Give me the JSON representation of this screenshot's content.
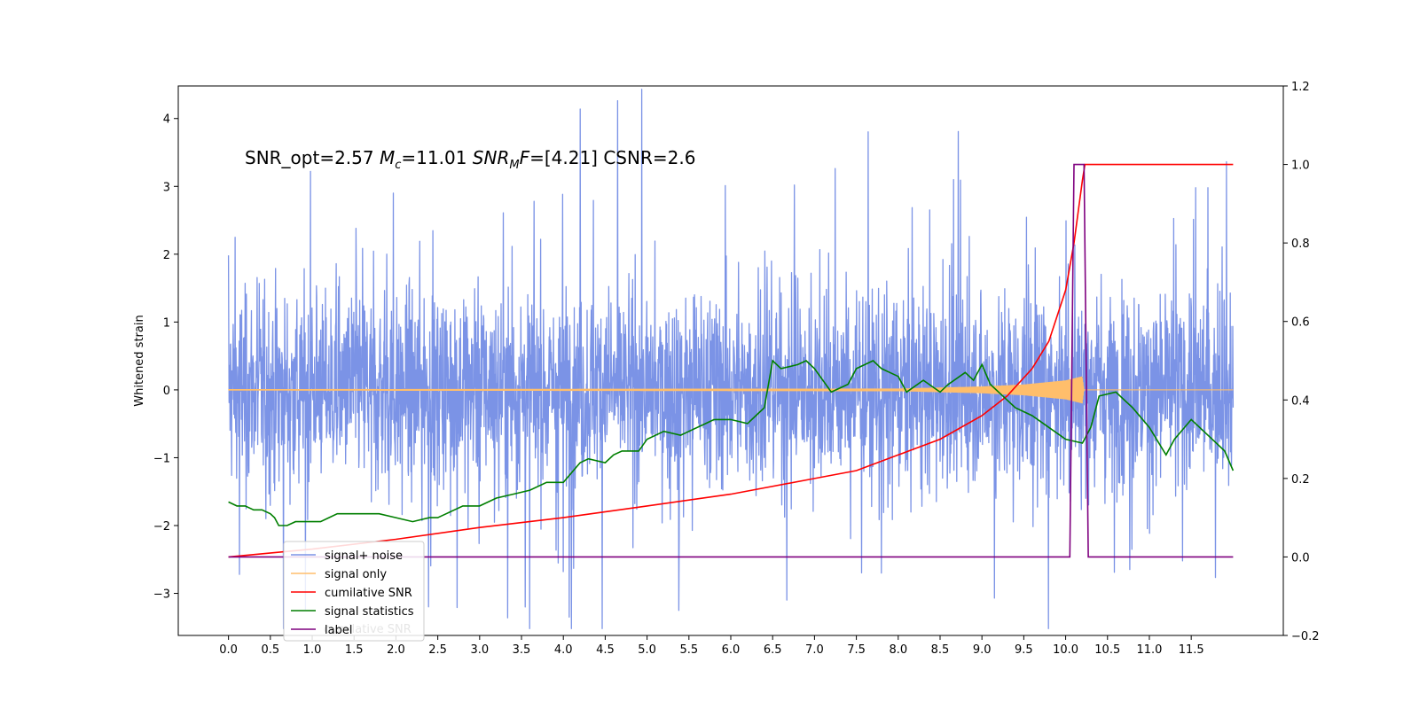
{
  "chart_data": {
    "type": "line",
    "ylabel": "Whitened strain",
    "annotation": {
      "part1": "SNR_opt=2.57   ",
      "mc_symbol": "M",
      "mc_sub": "c",
      "part2": "=11.01  ",
      "snr_symbol": "SNR",
      "snr_sub": "M",
      "snr_f": "F",
      "part3": "=[4.21]   CSNR=2.6"
    },
    "x_range": [
      -0.6,
      12.6
    ],
    "x_ticks": [
      0.0,
      0.5,
      1.0,
      1.5,
      2.0,
      2.5,
      3.0,
      3.5,
      4.0,
      4.5,
      5.0,
      5.5,
      6.0,
      6.5,
      7.0,
      7.5,
      8.0,
      8.5,
      9.0,
      9.5,
      10.0,
      10.5,
      11.0,
      11.5
    ],
    "x_tick_labels": [
      "0.0",
      "0.5",
      "1.0",
      "1.5",
      "2.0",
      "2.5",
      "3.0",
      "3.5",
      "4.0",
      "4.5",
      "5.0",
      "5.5",
      "6.0",
      "6.5",
      "7.0",
      "7.5",
      "8.0",
      "8.5",
      "9.0",
      "9.5",
      "10.0",
      "10.5",
      "11.0",
      "11.5"
    ],
    "y_left_range": [
      -3.62,
      4.48
    ],
    "y_left_ticks": [
      -3,
      -2,
      -1,
      0,
      1,
      2,
      3,
      4
    ],
    "y_left_tick_labels": [
      "−3",
      "−2",
      "−1",
      "0",
      "1",
      "2",
      "3",
      "4"
    ],
    "y_right_range": [
      -0.2,
      1.2
    ],
    "y_right_ticks": [
      -0.2,
      0.0,
      0.2,
      0.4,
      0.6,
      0.8,
      1.0,
      1.2
    ],
    "y_right_tick_labels": [
      "−0.2",
      "0.0",
      "0.2",
      "0.4",
      "0.6",
      "0.8",
      "1.0",
      "1.2"
    ],
    "legend": {
      "location": "lower-left",
      "entries": [
        {
          "label": "signal+ noise",
          "color": "#7b93e6"
        },
        {
          "label": "signal only",
          "color": "#ffbe6b"
        },
        {
          "label": "cumilative SNR",
          "color": "#ff0000"
        },
        {
          "label": "signal statistics",
          "color": "#007f00"
        },
        {
          "label": "label",
          "color": "#7f007f"
        }
      ],
      "ghost_text": "cumilative SNR"
    },
    "noise_series": {
      "name": "signal+ noise",
      "axis": "left",
      "color": "#7b93e6",
      "x_start": 0.0,
      "x_end": 12.0,
      "typical_amplitude": 0.65,
      "spikes": [
        {
          "x": 0.13,
          "y": -2.72
        },
        {
          "x": 0.98,
          "y": 3.22
        },
        {
          "x": 1.97,
          "y": 2.9
        },
        {
          "x": 4.2,
          "y": 4.14
        },
        {
          "x": 5.38,
          "y": -3.25
        },
        {
          "x": 6.76,
          "y": 3.02
        },
        {
          "x": 8.66,
          "y": 3.1
        },
        {
          "x": 9.15,
          "y": -3.07
        },
        {
          "x": 7.8,
          "y": -2.7
        },
        {
          "x": 4.0,
          "y": -2.68
        },
        {
          "x": 11.7,
          "y": 2.98
        }
      ]
    },
    "signal_only_series": {
      "name": "signal only",
      "axis": "left",
      "color": "#ffbe6b",
      "x_start": 0.0,
      "x_end": 12.0,
      "envelope": [
        [
          0.0,
          0.01
        ],
        [
          8.0,
          0.02
        ],
        [
          9.0,
          0.05
        ],
        [
          9.5,
          0.08
        ],
        [
          10.0,
          0.14
        ],
        [
          10.2,
          0.2
        ],
        [
          10.22,
          0.0
        ],
        [
          12.0,
          0.0
        ]
      ]
    },
    "cumulative_snr_series": {
      "name": "cumilative SNR",
      "axis": "right",
      "color": "#ff0000",
      "points": [
        [
          0.0,
          0.0
        ],
        [
          1.0,
          0.02
        ],
        [
          2.0,
          0.045
        ],
        [
          3.0,
          0.075
        ],
        [
          4.0,
          0.1
        ],
        [
          5.0,
          0.13
        ],
        [
          6.0,
          0.16
        ],
        [
          7.0,
          0.2
        ],
        [
          7.5,
          0.22
        ],
        [
          8.0,
          0.26
        ],
        [
          8.5,
          0.3
        ],
        [
          9.0,
          0.36
        ],
        [
          9.3,
          0.41
        ],
        [
          9.6,
          0.48
        ],
        [
          9.8,
          0.55
        ],
        [
          10.0,
          0.68
        ],
        [
          10.1,
          0.8
        ],
        [
          10.2,
          0.96
        ],
        [
          10.23,
          1.0
        ],
        [
          12.0,
          1.0
        ]
      ]
    },
    "signal_statistics_series": {
      "name": "signal statistics",
      "axis": "right",
      "color": "#007f00",
      "points": [
        [
          0.0,
          0.14
        ],
        [
          0.1,
          0.13
        ],
        [
          0.2,
          0.13
        ],
        [
          0.3,
          0.12
        ],
        [
          0.4,
          0.12
        ],
        [
          0.5,
          0.11
        ],
        [
          0.55,
          0.1
        ],
        [
          0.6,
          0.08
        ],
        [
          0.7,
          0.08
        ],
        [
          0.8,
          0.09
        ],
        [
          0.9,
          0.09
        ],
        [
          1.0,
          0.09
        ],
        [
          1.1,
          0.09
        ],
        [
          1.2,
          0.1
        ],
        [
          1.3,
          0.11
        ],
        [
          1.5,
          0.11
        ],
        [
          1.7,
          0.11
        ],
        [
          1.8,
          0.11
        ],
        [
          2.0,
          0.1
        ],
        [
          2.2,
          0.09
        ],
        [
          2.4,
          0.1
        ],
        [
          2.5,
          0.1
        ],
        [
          2.6,
          0.11
        ],
        [
          2.8,
          0.13
        ],
        [
          3.0,
          0.13
        ],
        [
          3.2,
          0.15
        ],
        [
          3.4,
          0.16
        ],
        [
          3.6,
          0.17
        ],
        [
          3.8,
          0.19
        ],
        [
          4.0,
          0.19
        ],
        [
          4.2,
          0.24
        ],
        [
          4.3,
          0.25
        ],
        [
          4.5,
          0.24
        ],
        [
          4.6,
          0.26
        ],
        [
          4.7,
          0.27
        ],
        [
          4.9,
          0.27
        ],
        [
          5.0,
          0.3
        ],
        [
          5.2,
          0.32
        ],
        [
          5.4,
          0.31
        ],
        [
          5.5,
          0.32
        ],
        [
          5.7,
          0.34
        ],
        [
          5.8,
          0.35
        ],
        [
          6.0,
          0.35
        ],
        [
          6.2,
          0.34
        ],
        [
          6.3,
          0.36
        ],
        [
          6.4,
          0.38
        ],
        [
          6.5,
          0.5
        ],
        [
          6.6,
          0.48
        ],
        [
          6.8,
          0.49
        ],
        [
          6.9,
          0.5
        ],
        [
          7.0,
          0.48
        ],
        [
          7.2,
          0.42
        ],
        [
          7.4,
          0.44
        ],
        [
          7.5,
          0.48
        ],
        [
          7.7,
          0.5
        ],
        [
          7.8,
          0.48
        ],
        [
          7.9,
          0.47
        ],
        [
          8.0,
          0.46
        ],
        [
          8.1,
          0.42
        ],
        [
          8.3,
          0.45
        ],
        [
          8.5,
          0.42
        ],
        [
          8.6,
          0.44
        ],
        [
          8.8,
          0.47
        ],
        [
          8.9,
          0.45
        ],
        [
          9.0,
          0.49
        ],
        [
          9.1,
          0.44
        ],
        [
          9.3,
          0.4
        ],
        [
          9.4,
          0.38
        ],
        [
          9.6,
          0.36
        ],
        [
          9.8,
          0.33
        ],
        [
          10.0,
          0.3
        ],
        [
          10.2,
          0.29
        ],
        [
          10.3,
          0.33
        ],
        [
          10.4,
          0.41
        ],
        [
          10.6,
          0.42
        ],
        [
          10.8,
          0.38
        ],
        [
          11.0,
          0.33
        ],
        [
          11.2,
          0.26
        ],
        [
          11.3,
          0.3
        ],
        [
          11.5,
          0.35
        ],
        [
          11.7,
          0.31
        ],
        [
          11.9,
          0.27
        ],
        [
          12.0,
          0.22
        ]
      ]
    },
    "label_series": {
      "name": "label",
      "axis": "right",
      "color": "#7f007f",
      "points": [
        [
          0.0,
          0.0
        ],
        [
          10.05,
          0.0
        ],
        [
          10.1,
          1.0
        ],
        [
          10.22,
          1.0
        ],
        [
          10.27,
          0.0
        ],
        [
          12.0,
          0.0
        ]
      ]
    }
  }
}
